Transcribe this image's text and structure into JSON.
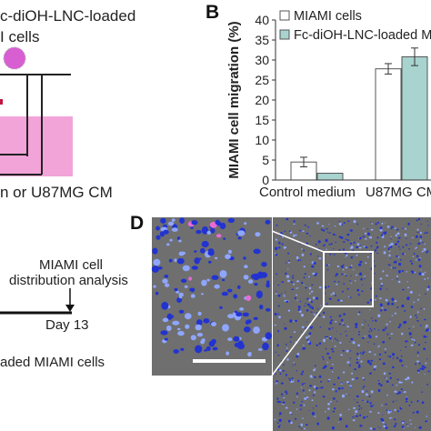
{
  "panel_a": {
    "label_line1": "c-diOH-LNC-loaded",
    "label_line2": "I cells",
    "medium_label": "n or U87MG CM"
  },
  "panel_b": {
    "letter": "B"
  },
  "panel_c": {
    "analysis_line1": "MIAMI cell",
    "analysis_line2": "distribution analysis",
    "day_label": "Day 13",
    "bottom_label": "aded MIAMI cells"
  },
  "panel_d": {
    "letter": "D"
  },
  "colors": {
    "bar_miami": "#ffffff",
    "bar_loaded": "#a8d3cf",
    "well_pink": "#f2a3d8",
    "cell_purple": "#d85fd1",
    "micro_bg": "#6f6f6f",
    "micro_dot": "#2233d0"
  },
  "chart_data": {
    "type": "bar",
    "title": "",
    "xlabel": "",
    "ylabel": "MIAMI cell migration (%)",
    "ylim": [
      0,
      40
    ],
    "yticks": [
      0,
      5,
      10,
      15,
      20,
      25,
      30,
      35,
      40
    ],
    "categories": [
      "Control medium",
      "U87MG CM"
    ],
    "series": [
      {
        "name": "MIAMI cells",
        "values": [
          4.5,
          27.8
        ],
        "errors": [
          1.2,
          1.3
        ]
      },
      {
        "name": "Fc-diOH-LNC-loaded MIA",
        "values": [
          1.7,
          30.8
        ],
        "errors": [
          0,
          2.2
        ]
      }
    ],
    "legend_position": "top-left",
    "grid": false
  }
}
